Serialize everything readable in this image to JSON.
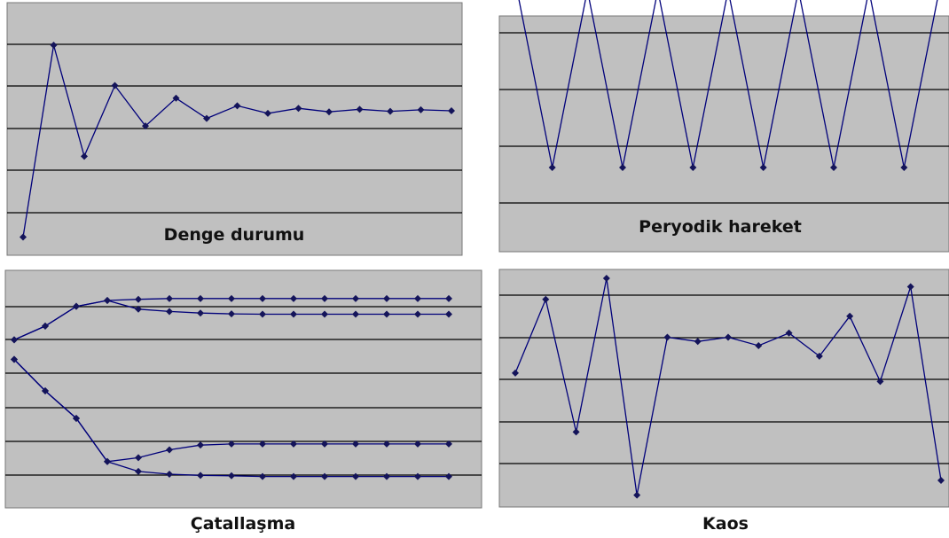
{
  "colors": {
    "panel_bg": "#c0c0c0",
    "gridline": "#000000",
    "series": "#00007a",
    "marker": "#14145a"
  },
  "chart_data": [
    {
      "id": "denge",
      "type": "line",
      "title": "Denge durumu",
      "title_position": "inside-bottom",
      "x": [
        1,
        2,
        3,
        4,
        5,
        6,
        7,
        8,
        9,
        10,
        11,
        12,
        13,
        14,
        15
      ],
      "ylim": [
        0,
        5
      ],
      "grid": true,
      "series": [
        {
          "values": [
            0.35,
            4.15,
            1.95,
            3.35,
            2.55,
            3.1,
            2.7,
            2.95,
            2.8,
            2.9,
            2.83,
            2.88,
            2.84,
            2.87,
            2.85
          ]
        }
      ]
    },
    {
      "id": "periyodik",
      "type": "line",
      "title": "Peryodik hareket",
      "title_position": "inside-bottom",
      "x": [
        1,
        2,
        3,
        4,
        5,
        6,
        7,
        8,
        9,
        10,
        11,
        12,
        13
      ],
      "ylim": [
        0,
        4
      ],
      "grid": true,
      "series": [
        {
          "values": [
            3.8,
            1.3,
            3.8,
            1.3,
            3.8,
            1.3,
            3.8,
            1.3,
            3.8,
            1.3,
            3.8,
            1.3,
            3.8
          ]
        }
      ]
    },
    {
      "id": "catallasma",
      "type": "line",
      "title": "Çatallaşma",
      "title_position": "below",
      "x": [
        1,
        2,
        3,
        4,
        5,
        6,
        7,
        8,
        9,
        10,
        11,
        12,
        13,
        14,
        15
      ],
      "ylim": [
        0,
        6
      ],
      "grid": true,
      "series": [
        {
          "values": [
            4.3,
            4.65,
            5.15,
            5.3,
            5.33,
            5.35,
            5.35,
            5.35,
            5.35,
            5.35,
            5.35,
            5.35,
            5.35,
            5.35,
            5.35
          ]
        },
        {
          "values": [
            4.3,
            4.65,
            5.15,
            5.3,
            5.08,
            5.02,
            4.98,
            4.96,
            4.95,
            4.95,
            4.95,
            4.95,
            4.95,
            4.95,
            4.95
          ]
        },
        {
          "values": [
            3.8,
            3.0,
            2.3,
            1.2,
            1.3,
            1.5,
            1.62,
            1.65,
            1.65,
            1.65,
            1.65,
            1.65,
            1.65,
            1.65,
            1.65
          ]
        },
        {
          "values": [
            3.8,
            3.0,
            2.3,
            1.2,
            0.95,
            0.88,
            0.85,
            0.84,
            0.82,
            0.82,
            0.82,
            0.82,
            0.82,
            0.82,
            0.82
          ]
        }
      ]
    },
    {
      "id": "kaos",
      "type": "line",
      "title": "Kaos",
      "title_position": "below",
      "x": [
        1,
        2,
        3,
        4,
        5,
        6,
        7,
        8,
        9,
        10,
        11,
        12,
        13,
        14,
        15
      ],
      "ylim": [
        0,
        6
      ],
      "grid": true,
      "series": [
        {
          "values": [
            3.15,
            4.9,
            1.75,
            5.4,
            0.25,
            4.0,
            3.9,
            4.0,
            3.8,
            4.1,
            3.55,
            4.5,
            2.95,
            5.2,
            0.6
          ]
        }
      ]
    }
  ]
}
